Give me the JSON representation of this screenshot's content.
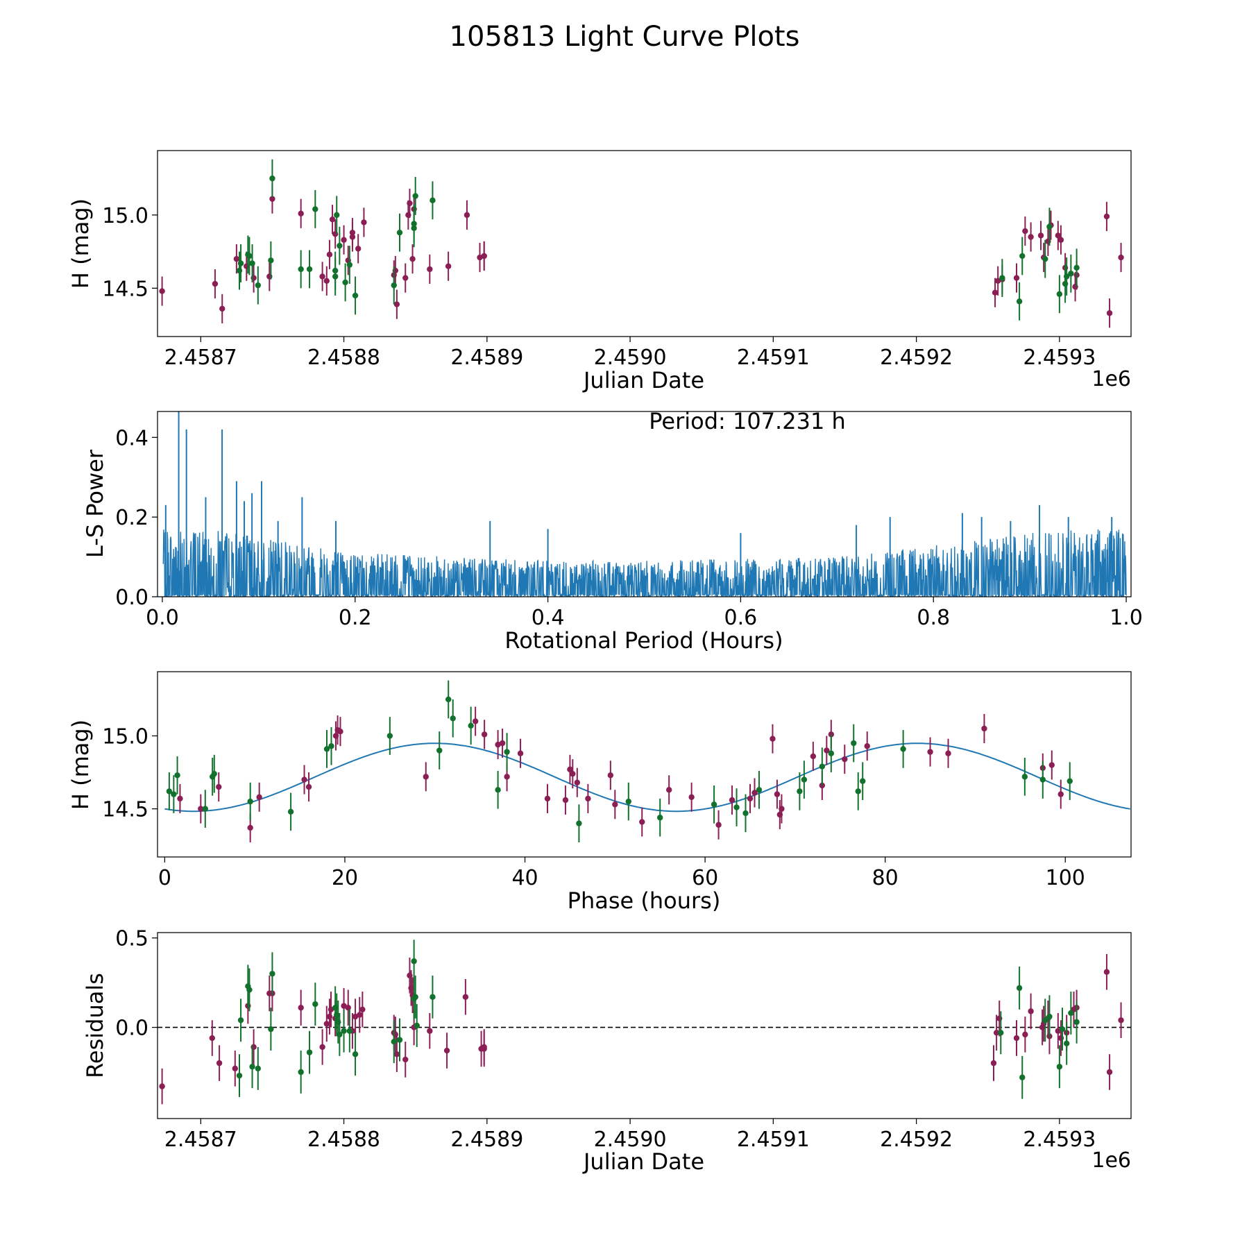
{
  "figure_title": "105813 Light Curve Plots",
  "colors": {
    "magenta": "#8b1f55",
    "green": "#12722d",
    "fit": "#1f77b4",
    "power": "#1f77b4",
    "axis": "#000000"
  },
  "chart_data": [
    {
      "id": "lightcurve",
      "type": "scatter",
      "title": "",
      "xlabel": "Julian Date",
      "ylabel": "H (mag)",
      "x_offset_label": "1e6",
      "xlim": [
        2458669.8,
        2459350
      ],
      "ylim": [
        14.17,
        15.44
      ],
      "xticks": [
        2458700,
        2458800,
        2458900,
        2459000,
        2459100,
        2459200,
        2459300
      ],
      "xtick_labels": [
        "2.4587",
        "2.4588",
        "2.4589",
        "2.4590",
        "2.4591",
        "2.4592",
        "2.4593"
      ],
      "yticks": [
        14.5,
        15.0
      ],
      "ytick_labels": [
        "14.5",
        "15.0"
      ],
      "series": [
        {
          "name": "magenta",
          "color": "#8b1f55",
          "err": 0.1,
          "x": [
            2458673,
            2458710,
            2458715,
            2458725,
            2458732,
            2458737,
            2458748,
            2458750,
            2458770,
            2458785,
            2458788,
            2458790,
            2458792,
            2458794,
            2458800,
            2458803,
            2458806,
            2458806,
            2458810,
            2458814,
            2458835,
            2458836,
            2458837,
            2458843,
            2458845,
            2458846,
            2458849,
            2458848,
            2458860,
            2458873,
            2458886,
            2458895,
            2458898,
            2458898,
            2459255,
            2459257,
            2459260,
            2459270,
            2459276,
            2459280,
            2459287,
            2459289,
            2459292,
            2459294,
            2459299,
            2459301,
            2459304,
            2459311,
            2459312,
            2459333,
            2459335,
            2459343
          ],
          "y": [
            14.48,
            14.53,
            14.36,
            14.7,
            14.65,
            14.57,
            14.58,
            15.11,
            15.01,
            14.58,
            14.55,
            14.73,
            14.97,
            14.87,
            14.83,
            14.69,
            14.88,
            14.85,
            14.77,
            14.95,
            14.59,
            14.62,
            14.39,
            14.57,
            15.0,
            15.08,
            15.04,
            14.7,
            14.63,
            14.65,
            15.0,
            14.71,
            14.72,
            14.72,
            14.47,
            14.55,
            14.56,
            14.57,
            14.89,
            14.85,
            14.86,
            14.71,
            14.82,
            14.93,
            14.86,
            14.83,
            14.64,
            14.51,
            14.59,
            14.99,
            14.33,
            14.71
          ]
        },
        {
          "name": "green",
          "color": "#12722d",
          "err": 0.13,
          "x": [
            2458727,
            2458728,
            2458733,
            2458734,
            2458736,
            2458740,
            2458749,
            2458750,
            2458770,
            2458776,
            2458780,
            2458794,
            2458794,
            2458795,
            2458797,
            2458801,
            2458804,
            2458808,
            2458835,
            2458839,
            2458849,
            2458849,
            2458850,
            2458862,
            2459260,
            2459272,
            2459274,
            2459290,
            2459293,
            2459300,
            2459304,
            2459305,
            2459308,
            2459312
          ],
          "y": [
            14.62,
            14.67,
            14.73,
            14.72,
            14.67,
            14.52,
            14.69,
            15.25,
            14.63,
            14.63,
            15.04,
            14.62,
            14.58,
            15.0,
            14.79,
            14.54,
            14.66,
            14.45,
            14.52,
            14.88,
            14.91,
            14.94,
            15.13,
            15.1,
            14.57,
            14.41,
            14.72,
            14.7,
            14.92,
            14.46,
            14.53,
            14.58,
            14.6,
            14.64
          ]
        }
      ]
    },
    {
      "id": "periodogram",
      "type": "line",
      "title": "",
      "xlabel": "Rotational Period (Hours)",
      "ylabel": "L-S Power",
      "annotation": "Period: 107.231 h",
      "xlim": [
        -0.005,
        1.005
      ],
      "ylim": [
        0,
        0.465
      ],
      "xticks": [
        0.0,
        0.2,
        0.4,
        0.6,
        0.8,
        1.0
      ],
      "xtick_labels": [
        "0.0",
        "0.2",
        "0.4",
        "0.6",
        "0.8",
        "1.0"
      ],
      "yticks": [
        0.0,
        0.2,
        0.4
      ],
      "ytick_labels": [
        "0.0",
        "0.2",
        "0.4"
      ],
      "baseline": 0.08,
      "envelope_x": [
        0,
        0.05,
        0.1,
        0.2,
        0.3,
        0.4,
        0.5,
        0.6,
        0.7,
        0.8,
        0.9,
        1.0
      ],
      "envelope_y": [
        0.17,
        0.17,
        0.15,
        0.11,
        0.1,
        0.09,
        0.09,
        0.095,
        0.1,
        0.13,
        0.16,
        0.18
      ],
      "peaks": [
        {
          "x": 0.0035,
          "y": 0.23
        },
        {
          "x": 0.017,
          "y": 0.465
        },
        {
          "x": 0.025,
          "y": 0.42
        },
        {
          "x": 0.045,
          "y": 0.25
        },
        {
          "x": 0.062,
          "y": 0.42
        },
        {
          "x": 0.077,
          "y": 0.29
        },
        {
          "x": 0.085,
          "y": 0.24
        },
        {
          "x": 0.093,
          "y": 0.26
        },
        {
          "x": 0.103,
          "y": 0.29
        },
        {
          "x": 0.145,
          "y": 0.25
        },
        {
          "x": 0.12,
          "y": 0.19
        },
        {
          "x": 0.18,
          "y": 0.19
        },
        {
          "x": 0.34,
          "y": 0.19
        },
        {
          "x": 0.72,
          "y": 0.18
        },
        {
          "x": 0.83,
          "y": 0.21
        },
        {
          "x": 0.85,
          "y": 0.2
        },
        {
          "x": 0.88,
          "y": 0.19
        },
        {
          "x": 0.91,
          "y": 0.23
        },
        {
          "x": 0.94,
          "y": 0.2
        },
        {
          "x": 0.985,
          "y": 0.2
        },
        {
          "x": 0.755,
          "y": 0.2
        },
        {
          "x": 0.6,
          "y": 0.16
        },
        {
          "x": 0.4,
          "y": 0.17
        }
      ]
    },
    {
      "id": "phase",
      "type": "scatter",
      "title": "",
      "xlabel": "Phase (hours)",
      "ylabel": "H (mag)",
      "xlim": [
        -0.8,
        107.3
      ],
      "ylim": [
        14.17,
        15.44
      ],
      "xticks": [
        0,
        20,
        40,
        60,
        80,
        100
      ],
      "xtick_labels": [
        "0",
        "20",
        "40",
        "60",
        "80",
        "100"
      ],
      "yticks": [
        14.5,
        15.0
      ],
      "ytick_labels": [
        "14.5",
        "15.0"
      ],
      "fit": {
        "mean": 14.716,
        "amplitude": 0.233,
        "period": 53.6,
        "peak_phase": 30.0,
        "x_start": 0,
        "x_end": 107.2
      },
      "series": [
        {
          "name": "magenta",
          "color": "#8b1f55",
          "err": 0.1,
          "x": [
            1.7,
            4.0,
            6.0,
            9.5,
            10.5,
            15.5,
            16.0,
            19.5,
            19.0,
            19.2,
            29.0,
            34.5,
            35.5,
            37.0,
            37.5,
            38.0,
            39.5,
            42.5,
            44.5,
            45.0,
            45.3,
            45.8,
            47.0,
            49.5,
            50.0,
            53.0,
            56.0,
            58.5,
            61.5,
            63.0,
            65.0,
            65.5,
            67.5,
            68.0,
            68.3,
            68.5,
            72.0,
            73.0,
            73.5,
            74.0,
            75.5,
            78.0,
            85.0,
            87.0,
            91.0,
            97.5,
            98.5,
            99.5
          ],
          "y": [
            14.57,
            14.5,
            14.65,
            14.37,
            14.58,
            14.7,
            14.65,
            15.03,
            15.0,
            15.04,
            14.72,
            15.1,
            15.01,
            14.94,
            14.95,
            14.72,
            14.88,
            14.57,
            14.56,
            14.77,
            14.74,
            14.68,
            14.57,
            14.73,
            14.53,
            14.41,
            14.63,
            14.58,
            14.39,
            14.56,
            14.57,
            14.61,
            14.98,
            14.6,
            14.46,
            14.5,
            14.86,
            14.66,
            14.9,
            15.01,
            14.84,
            14.93,
            14.89,
            14.88,
            15.05,
            14.78,
            14.8,
            14.6
          ]
        },
        {
          "name": "green",
          "color": "#12722d",
          "err": 0.13,
          "x": [
            0.5,
            1.0,
            1.4,
            4.5,
            5.3,
            5.5,
            9.5,
            14.0,
            18.0,
            18.5,
            25.0,
            30.5,
            31.5,
            32.0,
            34.0,
            37.0,
            38.0,
            46.0,
            51.5,
            55.0,
            61.0,
            63.5,
            64.5,
            66.0,
            70.5,
            71.0,
            73.0,
            74.0,
            76.5,
            77.0,
            77.5,
            82.0,
            95.5,
            97.5,
            100.5
          ],
          "y": [
            14.62,
            14.6,
            14.73,
            14.5,
            14.72,
            14.74,
            14.55,
            14.48,
            14.91,
            14.93,
            15.0,
            14.9,
            15.25,
            15.12,
            15.07,
            14.63,
            14.89,
            14.4,
            14.55,
            14.44,
            14.53,
            14.51,
            14.47,
            14.63,
            14.62,
            14.7,
            14.79,
            14.88,
            14.95,
            14.62,
            14.69,
            14.91,
            14.72,
            14.7,
            14.69
          ]
        }
      ]
    },
    {
      "id": "residuals",
      "type": "scatter",
      "title": "",
      "xlabel": "Julian Date",
      "ylabel": "Residuals",
      "x_offset_label": "1e6",
      "xlim": [
        2458669.8,
        2459350
      ],
      "ylim": [
        -0.51,
        0.53
      ],
      "hline": 0.0,
      "xticks": [
        2458700,
        2458800,
        2458900,
        2459000,
        2459100,
        2459200,
        2459300
      ],
      "xtick_labels": [
        "2.4587",
        "2.4588",
        "2.4589",
        "2.4590",
        "2.4591",
        "2.4592",
        "2.4593"
      ],
      "yticks": [
        0.0,
        0.5
      ],
      "ytick_labels": [
        "0.0",
        "0.5"
      ],
      "series": [
        {
          "name": "magenta",
          "color": "#8b1f55",
          "err": 0.1,
          "x": [
            2458673,
            2458708,
            2458713,
            2458724,
            2458733,
            2458737,
            2458748,
            2458750,
            2458770,
            2458785,
            2458788,
            2458790,
            2458791,
            2458794,
            2458800,
            2458803,
            2458806,
            2458808,
            2458811,
            2458813,
            2458835,
            2458836,
            2458837,
            2458843,
            2458846,
            2458847,
            2458848,
            2458849,
            2458860,
            2458872,
            2458885,
            2458896,
            2458898,
            2458898,
            2459254,
            2459256,
            2459258,
            2459270,
            2459276,
            2459280,
            2459288,
            2459289,
            2459292,
            2459293,
            2459299,
            2459301,
            2459305,
            2459310,
            2459312,
            2459333,
            2459335,
            2459343
          ],
          "y": [
            -0.33,
            -0.06,
            -0.2,
            -0.23,
            0.12,
            -0.11,
            0.19,
            0.19,
            0.11,
            -0.11,
            0.02,
            0.06,
            0.1,
            0.05,
            0.12,
            0.11,
            -0.02,
            0.06,
            0.07,
            0.1,
            -0.03,
            -0.04,
            -0.15,
            -0.18,
            0.29,
            0.22,
            0.18,
            0.0,
            -0.02,
            -0.13,
            0.17,
            -0.12,
            -0.12,
            -0.11,
            -0.2,
            -0.03,
            0.05,
            -0.06,
            -0.04,
            0.09,
            0.0,
            0.02,
            0.05,
            -0.05,
            -0.02,
            -0.06,
            -0.03,
            0.1,
            0.11,
            0.31,
            -0.25,
            0.04
          ]
        },
        {
          "name": "green",
          "color": "#12722d",
          "err": 0.12,
          "x": [
            2458727,
            2458728,
            2458733,
            2458734,
            2458736,
            2458740,
            2458749,
            2458750,
            2458770,
            2458776,
            2458780,
            2458794,
            2458795,
            2458796,
            2458797,
            2458800,
            2458804,
            2458808,
            2458835,
            2458839,
            2458849,
            2458849,
            2458850,
            2458851,
            2458862,
            2459259,
            2459272,
            2459274,
            2459290,
            2459293,
            2459300,
            2459302,
            2459305,
            2459308,
            2459312
          ],
          "y": [
            -0.27,
            0.04,
            0.23,
            0.21,
            -0.22,
            -0.23,
            -0.01,
            0.3,
            -0.25,
            -0.14,
            0.13,
            0.11,
            0.07,
            0.03,
            -0.04,
            -0.02,
            -0.02,
            -0.15,
            -0.08,
            -0.07,
            0.37,
            0.16,
            0.17,
            0.01,
            0.17,
            -0.03,
            0.22,
            -0.28,
            0.04,
            0.06,
            -0.22,
            -0.01,
            -0.09,
            0.08,
            0.03
          ]
        }
      ]
    }
  ]
}
